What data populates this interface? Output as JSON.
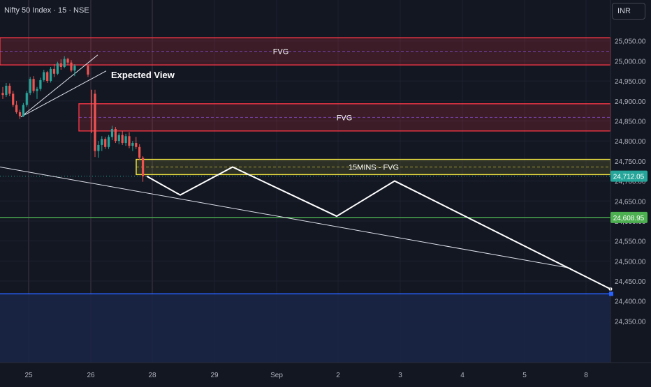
{
  "header": {
    "symbol_title": "Nifty 50 Index · 15 · NSE",
    "currency": "INR"
  },
  "colors": {
    "background": "#131722",
    "grid": "#1e2230",
    "axis_text": "#b2b5be",
    "fvg_border": "#f23645",
    "fvg_fill": "#3a1d2a",
    "yellow_border": "#f0e442",
    "green_line": "#4caf50",
    "blue_line": "#2962ff",
    "blue_zone": "#1a2447",
    "candle_up": "#26a69a",
    "candle_down": "#ef5350",
    "projection": "#ffffff"
  },
  "chart_data": {
    "type": "candlestick",
    "title": "Nifty 50 Index · 15 · NSE",
    "xlabel": "",
    "ylabel": "",
    "x_ticks": [
      "25",
      "26",
      "28",
      "29",
      "Sep",
      "2",
      "3",
      "4",
      "5",
      "8"
    ],
    "y_ticks": [
      "24,350.00",
      "24,400.00",
      "24,450.00",
      "24,500.00",
      "24,550.00",
      "24,600.00",
      "24,650.00",
      "24,700.00",
      "24,750.00",
      "24,800.00",
      "24,850.00",
      "24,900.00",
      "24,950.00",
      "25,000.00",
      "25,050.00"
    ],
    "ylim": [
      24295,
      25100
    ],
    "grid": true,
    "price_labels": [
      {
        "text": "24,712.05",
        "value": 24712.05,
        "color": "#26a69a"
      },
      {
        "text": "24,608.95",
        "value": 24608.95,
        "color": "#4caf50"
      }
    ],
    "zones": [
      {
        "label": "FVG",
        "top": 25058,
        "bottom": 24990,
        "x_start": 0,
        "x_end": 1,
        "color": "#f23645"
      },
      {
        "label": "FVG",
        "top": 24893,
        "bottom": 24825,
        "x_start": 1.01,
        "x_end": 1,
        "color": "#f23645"
      },
      {
        "label": "15MINS - FVG",
        "top": 24754,
        "bottom": 24716,
        "x_start": 1.98,
        "x_end": 1,
        "color": "#f0e442"
      }
    ],
    "horizontal_lines": [
      {
        "value": 24608.95,
        "color": "#4caf50"
      },
      {
        "value": 24418,
        "color": "#2962ff"
      }
    ],
    "annotations": [
      {
        "text": "Expected View"
      }
    ],
    "candles": [
      {
        "o": 24920,
        "h": 24935,
        "l": 24905,
        "c": 24915
      },
      {
        "o": 24915,
        "h": 24945,
        "l": 24910,
        "c": 24938
      },
      {
        "o": 24938,
        "h": 24944,
        "l": 24912,
        "c": 24918
      },
      {
        "o": 24918,
        "h": 24925,
        "l": 24885,
        "c": 24890
      },
      {
        "o": 24890,
        "h": 24900,
        "l": 24868,
        "c": 24872
      },
      {
        "o": 24872,
        "h": 24878,
        "l": 24855,
        "c": 24862
      },
      {
        "o": 24862,
        "h": 24895,
        "l": 24860,
        "c": 24890
      },
      {
        "o": 24890,
        "h": 24925,
        "l": 24885,
        "c": 24920
      },
      {
        "o": 24920,
        "h": 24960,
        "l": 24915,
        "c": 24955
      },
      {
        "o": 24955,
        "h": 24962,
        "l": 24920,
        "c": 24925
      },
      {
        "o": 24925,
        "h": 24935,
        "l": 24905,
        "c": 24930
      },
      {
        "o": 24930,
        "h": 24958,
        "l": 24925,
        "c": 24952
      },
      {
        "o": 24952,
        "h": 24978,
        "l": 24948,
        "c": 24972
      },
      {
        "o": 24972,
        "h": 24975,
        "l": 24945,
        "c": 24950
      },
      {
        "o": 24950,
        "h": 24985,
        "l": 24946,
        "c": 24980
      },
      {
        "o": 24980,
        "h": 24992,
        "l": 24960,
        "c": 24968
      },
      {
        "o": 24968,
        "h": 24998,
        "l": 24965,
        "c": 24994
      },
      {
        "o": 24994,
        "h": 25004,
        "l": 24978,
        "c": 24985
      },
      {
        "o": 24985,
        "h": 25012,
        "l": 24982,
        "c": 25005
      },
      {
        "o": 25005,
        "h": 25008,
        "l": 24990,
        "c": 24996
      },
      {
        "o": 24996,
        "h": 25002,
        "l": 24972,
        "c": 24976
      },
      {
        "o": 24976,
        "h": 24992,
        "l": 24962,
        "c": 24988
      },
      {
        "o": 24988,
        "h": 24992,
        "l": 24960,
        "c": 24966
      },
      {
        "o": 24918,
        "h": 24928,
        "l": 24760,
        "c": 24775
      },
      {
        "o": 24775,
        "h": 24800,
        "l": 24758,
        "c": 24790
      },
      {
        "o": 24790,
        "h": 24812,
        "l": 24775,
        "c": 24805
      },
      {
        "o": 24805,
        "h": 24810,
        "l": 24780,
        "c": 24785
      },
      {
        "o": 24785,
        "h": 24815,
        "l": 24780,
        "c": 24810
      },
      {
        "o": 24810,
        "h": 24838,
        "l": 24802,
        "c": 24830
      },
      {
        "o": 24830,
        "h": 24835,
        "l": 24795,
        "c": 24800
      },
      {
        "o": 24800,
        "h": 24820,
        "l": 24792,
        "c": 24815
      },
      {
        "o": 24815,
        "h": 24825,
        "l": 24790,
        "c": 24795
      },
      {
        "o": 24795,
        "h": 24818,
        "l": 24788,
        "c": 24812
      },
      {
        "o": 24812,
        "h": 24822,
        "l": 24782,
        "c": 24788
      },
      {
        "o": 24788,
        "h": 24800,
        "l": 24775,
        "c": 24795
      },
      {
        "o": 24795,
        "h": 24810,
        "l": 24780,
        "c": 24785
      },
      {
        "o": 24785,
        "h": 24792,
        "l": 24752,
        "c": 24758
      },
      {
        "o": 24758,
        "h": 24762,
        "l": 24698,
        "c": 24712
      }
    ],
    "channel_lines": [
      {
        "from": [
          0.035,
          24860
        ],
        "to": [
          0.15,
          25015
        ]
      },
      {
        "from": [
          0.035,
          24865
        ],
        "to": [
          0.16,
          24975
        ]
      }
    ],
    "trendline": {
      "from": [
        0,
        24735
      ],
      "to": [
        0.935,
        24482
      ]
    },
    "projection": [
      24712,
      24665,
      24735,
      24612,
      24700,
      24430
    ],
    "marker": {
      "value": 24418,
      "color": "#2962ff"
    }
  }
}
